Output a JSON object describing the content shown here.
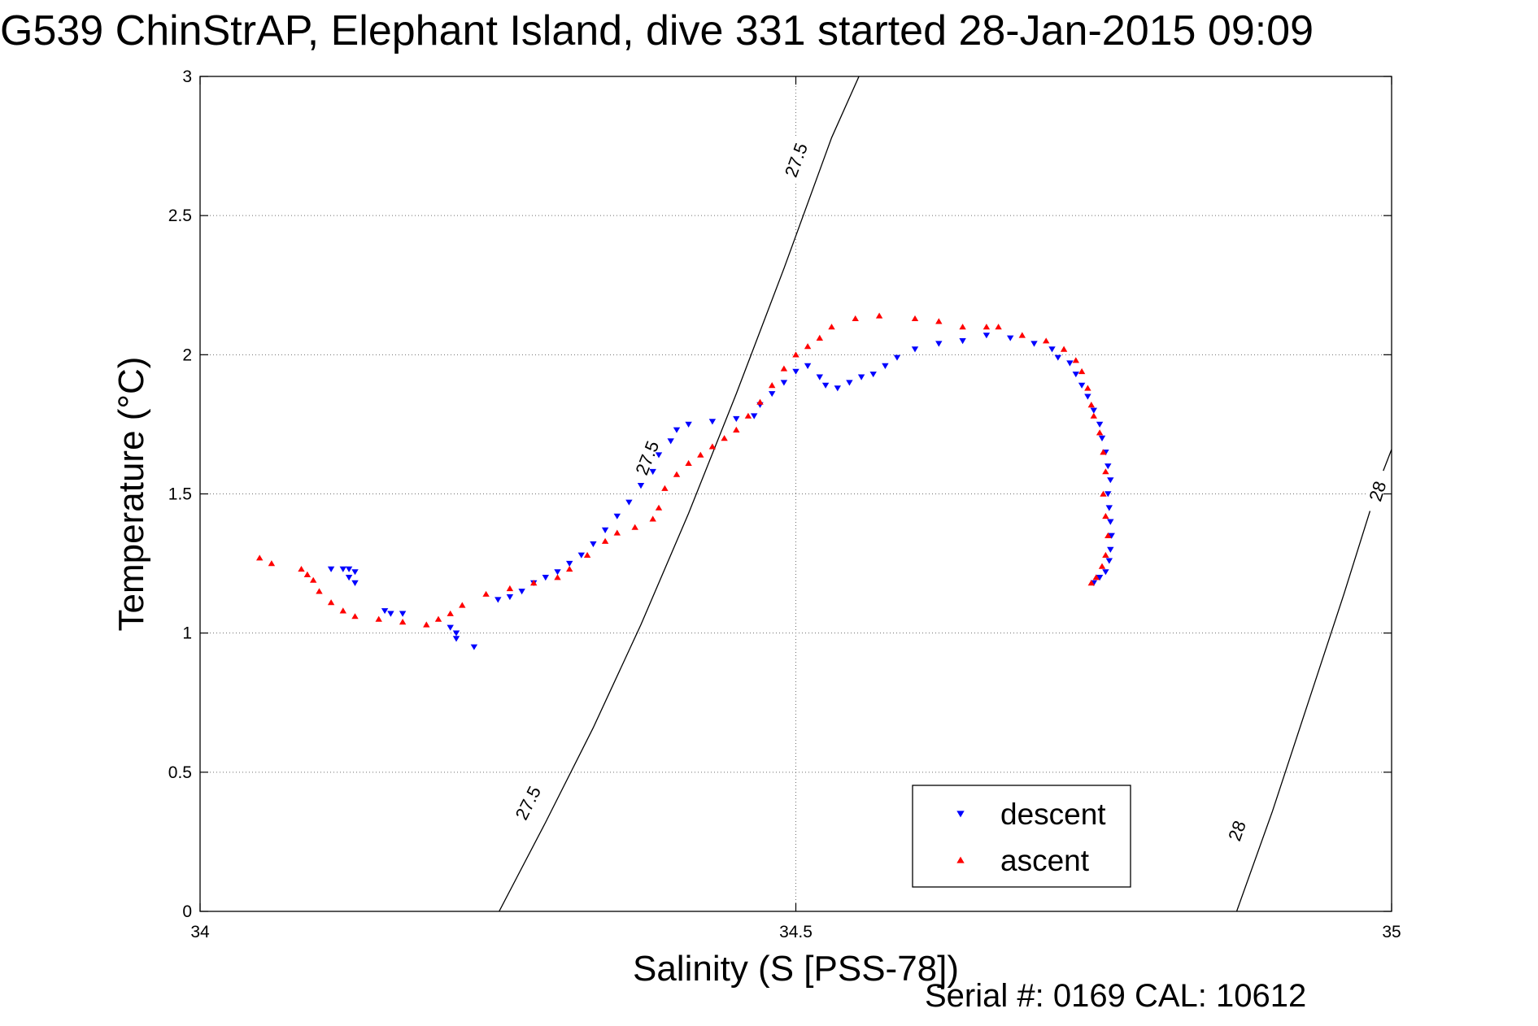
{
  "title": "G539 ChinStrAP, Elephant Island, dive 331 started 28-Jan-2015 09:09",
  "footer": "Serial #: 0169 CAL: 10612",
  "chart_data": {
    "type": "scatter",
    "title": "G539 ChinStrAP, Elephant Island, dive 331 started 28-Jan-2015 09:09",
    "xlabel": "Salinity (S [PSS-78])",
    "ylabel": "Temperature (°C)",
    "xlim": [
      34,
      35
    ],
    "ylim": [
      0,
      3
    ],
    "xticks": [
      "34",
      "34.5",
      "35"
    ],
    "yticks": [
      "0",
      "0.5",
      "1",
      "1.5",
      "2",
      "2.5",
      "3"
    ],
    "grid": true,
    "legend_position": "bottom-right",
    "contours": [
      {
        "label": "27.5",
        "points": [
          [
            34.251,
            0.0
          ],
          [
            34.29,
            0.32
          ],
          [
            34.33,
            0.66
          ],
          [
            34.37,
            1.03
          ],
          [
            34.41,
            1.43
          ],
          [
            34.45,
            1.86
          ],
          [
            34.49,
            2.31
          ],
          [
            34.53,
            2.78
          ],
          [
            34.553,
            3.0
          ]
        ],
        "label_at": [
          [
            34.275,
            0.39
          ],
          [
            34.375,
            1.63
          ],
          [
            34.5,
            2.7
          ]
        ]
      },
      {
        "label": "28",
        "points": [
          [
            34.87,
            0.0
          ],
          [
            34.9,
            0.36
          ],
          [
            34.93,
            0.75
          ],
          [
            34.96,
            1.14
          ],
          [
            34.99,
            1.55
          ],
          [
            35.0,
            1.66
          ]
        ],
        "label_at": [
          [
            34.87,
            0.29
          ],
          [
            34.988,
            1.51
          ]
        ]
      }
    ],
    "series": [
      {
        "name": "descent",
        "marker": "triangle-down",
        "color": "#0000ff",
        "points": [
          [
            34.11,
            1.23
          ],
          [
            34.12,
            1.23
          ],
          [
            34.125,
            1.23
          ],
          [
            34.13,
            1.22
          ],
          [
            34.125,
            1.2
          ],
          [
            34.13,
            1.18
          ],
          [
            34.155,
            1.08
          ],
          [
            34.16,
            1.07
          ],
          [
            34.17,
            1.07
          ],
          [
            34.21,
            1.02
          ],
          [
            34.215,
            1.0
          ],
          [
            34.215,
            0.98
          ],
          [
            34.23,
            0.95
          ],
          [
            34.25,
            1.12
          ],
          [
            34.26,
            1.13
          ],
          [
            34.27,
            1.15
          ],
          [
            34.28,
            1.18
          ],
          [
            34.29,
            1.2
          ],
          [
            34.3,
            1.22
          ],
          [
            34.31,
            1.25
          ],
          [
            34.32,
            1.28
          ],
          [
            34.33,
            1.32
          ],
          [
            34.34,
            1.37
          ],
          [
            34.35,
            1.42
          ],
          [
            34.36,
            1.47
          ],
          [
            34.37,
            1.53
          ],
          [
            34.38,
            1.58
          ],
          [
            34.385,
            1.64
          ],
          [
            34.395,
            1.69
          ],
          [
            34.4,
            1.73
          ],
          [
            34.41,
            1.75
          ],
          [
            34.43,
            1.76
          ],
          [
            34.45,
            1.77
          ],
          [
            34.465,
            1.78
          ],
          [
            34.47,
            1.82
          ],
          [
            34.48,
            1.86
          ],
          [
            34.49,
            1.9
          ],
          [
            34.5,
            1.94
          ],
          [
            34.51,
            1.96
          ],
          [
            34.52,
            1.92
          ],
          [
            34.525,
            1.89
          ],
          [
            34.535,
            1.88
          ],
          [
            34.545,
            1.9
          ],
          [
            34.555,
            1.92
          ],
          [
            34.565,
            1.93
          ],
          [
            34.575,
            1.96
          ],
          [
            34.585,
            1.99
          ],
          [
            34.6,
            2.02
          ],
          [
            34.62,
            2.04
          ],
          [
            34.64,
            2.05
          ],
          [
            34.66,
            2.07
          ],
          [
            34.68,
            2.06
          ],
          [
            34.7,
            2.04
          ],
          [
            34.715,
            2.02
          ],
          [
            34.72,
            1.99
          ],
          [
            34.73,
            1.97
          ],
          [
            34.735,
            1.93
          ],
          [
            34.74,
            1.89
          ],
          [
            34.745,
            1.85
          ],
          [
            34.75,
            1.8
          ],
          [
            34.755,
            1.75
          ],
          [
            34.757,
            1.7
          ],
          [
            34.76,
            1.65
          ],
          [
            34.762,
            1.6
          ],
          [
            34.764,
            1.55
          ],
          [
            34.762,
            1.5
          ],
          [
            34.763,
            1.45
          ],
          [
            34.764,
            1.4
          ],
          [
            34.765,
            1.35
          ],
          [
            34.764,
            1.3
          ],
          [
            34.763,
            1.26
          ],
          [
            34.76,
            1.22
          ],
          [
            34.755,
            1.2
          ],
          [
            34.75,
            1.18
          ]
        ]
      },
      {
        "name": "ascent",
        "marker": "triangle-up",
        "color": "#ff0000",
        "points": [
          [
            34.05,
            1.27
          ],
          [
            34.06,
            1.25
          ],
          [
            34.085,
            1.23
          ],
          [
            34.09,
            1.21
          ],
          [
            34.095,
            1.19
          ],
          [
            34.1,
            1.15
          ],
          [
            34.11,
            1.11
          ],
          [
            34.12,
            1.08
          ],
          [
            34.13,
            1.06
          ],
          [
            34.15,
            1.05
          ],
          [
            34.17,
            1.04
          ],
          [
            34.19,
            1.03
          ],
          [
            34.2,
            1.05
          ],
          [
            34.21,
            1.07
          ],
          [
            34.22,
            1.1
          ],
          [
            34.24,
            1.14
          ],
          [
            34.26,
            1.16
          ],
          [
            34.28,
            1.18
          ],
          [
            34.3,
            1.2
          ],
          [
            34.31,
            1.23
          ],
          [
            34.325,
            1.28
          ],
          [
            34.34,
            1.33
          ],
          [
            34.35,
            1.36
          ],
          [
            34.365,
            1.38
          ],
          [
            34.38,
            1.41
          ],
          [
            34.385,
            1.45
          ],
          [
            34.39,
            1.52
          ],
          [
            34.4,
            1.57
          ],
          [
            34.41,
            1.61
          ],
          [
            34.42,
            1.64
          ],
          [
            34.43,
            1.67
          ],
          [
            34.44,
            1.7
          ],
          [
            34.45,
            1.73
          ],
          [
            34.46,
            1.78
          ],
          [
            34.47,
            1.83
          ],
          [
            34.48,
            1.89
          ],
          [
            34.49,
            1.95
          ],
          [
            34.5,
            2.0
          ],
          [
            34.51,
            2.03
          ],
          [
            34.52,
            2.06
          ],
          [
            34.53,
            2.1
          ],
          [
            34.55,
            2.13
          ],
          [
            34.57,
            2.14
          ],
          [
            34.6,
            2.13
          ],
          [
            34.62,
            2.12
          ],
          [
            34.64,
            2.1
          ],
          [
            34.66,
            2.1
          ],
          [
            34.67,
            2.1
          ],
          [
            34.69,
            2.07
          ],
          [
            34.71,
            2.05
          ],
          [
            34.725,
            2.02
          ],
          [
            34.735,
            1.98
          ],
          [
            34.74,
            1.94
          ],
          [
            34.745,
            1.88
          ],
          [
            34.748,
            1.82
          ],
          [
            34.75,
            1.78
          ],
          [
            34.755,
            1.72
          ],
          [
            34.758,
            1.65
          ],
          [
            34.76,
            1.58
          ],
          [
            34.758,
            1.5
          ],
          [
            34.76,
            1.42
          ],
          [
            34.762,
            1.35
          ],
          [
            34.76,
            1.28
          ],
          [
            34.757,
            1.24
          ],
          [
            34.752,
            1.2
          ],
          [
            34.748,
            1.18
          ]
        ]
      }
    ]
  }
}
